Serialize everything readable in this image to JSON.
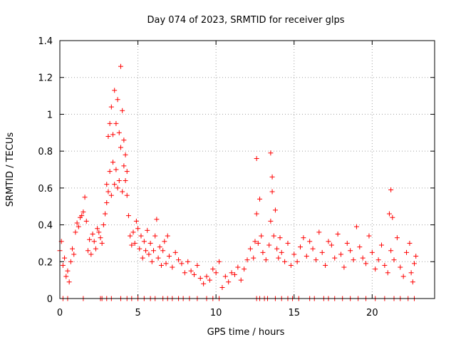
{
  "chart_data": {
    "type": "scatter",
    "title": "Day 074 of 2023, SRMTID for receiver glps",
    "xlabel": "GPS time / hours",
    "ylabel": "SRMTID / TECUs",
    "xlim": [
      0,
      24
    ],
    "ylim": [
      0,
      1.4
    ],
    "xticks": [
      0,
      5,
      10,
      15,
      20
    ],
    "xtick_labels": [
      "0",
      "5",
      "10",
      "15",
      "20"
    ],
    "yticks": [
      0,
      0.2,
      0.4,
      0.6,
      0.8,
      1.0,
      1.2,
      1.4
    ],
    "ytick_labels": [
      "0",
      "0.2",
      "0.4",
      "0.6",
      "0.8",
      "1",
      "1.2",
      "1.4"
    ],
    "grid": true,
    "marker": "+",
    "color": "#ff0000",
    "series": [
      {
        "name": "SRMTID",
        "x": [
          0.0,
          0.1,
          0.2,
          0.3,
          0.4,
          0.5,
          0.6,
          0.7,
          0.8,
          0.9,
          1.0,
          1.1,
          1.2,
          1.3,
          1.4,
          1.5,
          1.6,
          1.7,
          1.8,
          1.9,
          2.0,
          2.1,
          2.2,
          2.3,
          2.4,
          2.5,
          2.6,
          2.7,
          2.8,
          2.9,
          3.0,
          3.0,
          3.1,
          3.1,
          3.2,
          3.2,
          3.3,
          3.3,
          3.4,
          3.4,
          3.5,
          3.5,
          3.6,
          3.6,
          3.7,
          3.7,
          3.8,
          3.8,
          3.9,
          3.9,
          4.0,
          4.0,
          4.1,
          4.1,
          4.2,
          4.2,
          4.3,
          4.3,
          4.4,
          4.5,
          4.6,
          4.7,
          4.8,
          4.9,
          5.0,
          5.1,
          5.2,
          5.3,
          5.4,
          5.5,
          5.6,
          5.7,
          5.8,
          5.9,
          6.0,
          6.1,
          6.2,
          6.3,
          6.4,
          6.5,
          6.6,
          6.7,
          6.8,
          6.9,
          7.0,
          7.2,
          7.4,
          7.6,
          7.8,
          8.0,
          8.2,
          8.4,
          8.6,
          8.8,
          9.0,
          9.2,
          9.4,
          9.6,
          9.8,
          10.0,
          10.2,
          10.4,
          10.6,
          10.8,
          11.0,
          11.2,
          11.4,
          11.6,
          11.8,
          12.0,
          12.2,
          12.4,
          12.5,
          12.6,
          12.6,
          12.7,
          12.8,
          12.9,
          13.0,
          13.2,
          13.4,
          13.5,
          13.5,
          13.6,
          13.6,
          13.7,
          13.8,
          13.9,
          14.0,
          14.1,
          14.2,
          14.4,
          14.6,
          14.8,
          15.0,
          15.2,
          15.4,
          15.6,
          15.8,
          16.0,
          16.2,
          16.4,
          16.6,
          16.8,
          17.0,
          17.2,
          17.4,
          17.6,
          17.8,
          18.0,
          18.2,
          18.4,
          18.6,
          18.8,
          19.0,
          19.2,
          19.4,
          19.6,
          19.8,
          20.0,
          20.2,
          20.4,
          20.6,
          20.8,
          21.0,
          21.1,
          21.2,
          21.2,
          21.3,
          21.4,
          21.6,
          21.8,
          22.0,
          22.2,
          22.4,
          22.5,
          22.6,
          22.7,
          22.8,
          0.2,
          0.5,
          1.5,
          2.6,
          2.7,
          3.0,
          3.3,
          3.9,
          4.3,
          4.6,
          5.0,
          5.4,
          5.8,
          6.1,
          6.6,
          6.9,
          7.2,
          7.6,
          7.9,
          8.3,
          8.8,
          9.4,
          9.8,
          10.2,
          12.6,
          12.8,
          13.1,
          13.3,
          13.8,
          14.2,
          14.6,
          14.9,
          15.3,
          16.0,
          16.3,
          16.9,
          17.2,
          17.6,
          18.1,
          18.6,
          19.1,
          19.6,
          20.2,
          20.8,
          21.4,
          21.8,
          22.3,
          22.7
        ],
        "y": [
          0.26,
          0.31,
          0.18,
          0.22,
          0.12,
          0.15,
          0.09,
          0.2,
          0.27,
          0.24,
          0.36,
          0.41,
          0.39,
          0.44,
          0.45,
          0.47,
          0.55,
          0.42,
          0.26,
          0.32,
          0.24,
          0.35,
          0.31,
          0.27,
          0.38,
          0.36,
          0.33,
          0.3,
          0.4,
          0.46,
          0.52,
          0.62,
          0.58,
          0.88,
          0.69,
          0.95,
          0.56,
          1.04,
          0.74,
          0.89,
          0.62,
          1.13,
          0.7,
          0.95,
          0.6,
          1.08,
          0.64,
          0.9,
          0.82,
          1.26,
          0.58,
          1.02,
          0.72,
          0.86,
          0.64,
          0.78,
          0.56,
          0.69,
          0.45,
          0.34,
          0.29,
          0.36,
          0.3,
          0.42,
          0.38,
          0.27,
          0.34,
          0.22,
          0.31,
          0.26,
          0.37,
          0.24,
          0.3,
          0.2,
          0.26,
          0.34,
          0.43,
          0.22,
          0.28,
          0.18,
          0.26,
          0.31,
          0.19,
          0.34,
          0.23,
          0.17,
          0.25,
          0.21,
          0.19,
          0.14,
          0.2,
          0.15,
          0.13,
          0.18,
          0.11,
          0.08,
          0.12,
          0.1,
          0.16,
          0.14,
          0.2,
          0.06,
          0.12,
          0.09,
          0.14,
          0.13,
          0.17,
          0.1,
          0.16,
          0.21,
          0.27,
          0.22,
          0.31,
          0.46,
          0.76,
          0.3,
          0.54,
          0.34,
          0.25,
          0.21,
          0.29,
          0.42,
          0.79,
          0.58,
          0.66,
          0.34,
          0.48,
          0.27,
          0.22,
          0.33,
          0.25,
          0.2,
          0.3,
          0.18,
          0.24,
          0.2,
          0.28,
          0.33,
          0.23,
          0.31,
          0.27,
          0.21,
          0.36,
          0.25,
          0.18,
          0.31,
          0.29,
          0.22,
          0.35,
          0.24,
          0.17,
          0.3,
          0.26,
          0.21,
          0.39,
          0.28,
          0.22,
          0.19,
          0.34,
          0.25,
          0.16,
          0.21,
          0.29,
          0.18,
          0.14,
          0.46,
          0.26,
          0.59,
          0.44,
          0.21,
          0.33,
          0.17,
          0.12,
          0.25,
          0.3,
          0.14,
          0.09,
          0.19,
          0.23,
          0.0,
          0.0,
          0.0,
          0.0,
          0.0,
          0.0,
          0.0,
          0.0,
          0.0,
          0.0,
          0.0,
          0.0,
          0.0,
          0.0,
          0.0,
          0.0,
          0.0,
          0.0,
          0.0,
          0.0,
          0.0,
          0.0,
          0.0,
          0.0,
          0.0,
          0.0,
          0.0,
          0.0,
          0.0,
          0.0,
          0.0,
          0.0,
          0.0,
          0.0,
          0.0,
          0.0,
          0.0,
          0.0,
          0.0,
          0.0,
          0.0,
          0.0,
          0.0,
          0.0,
          0.0,
          0.0,
          0.0,
          0.0
        ]
      }
    ]
  }
}
